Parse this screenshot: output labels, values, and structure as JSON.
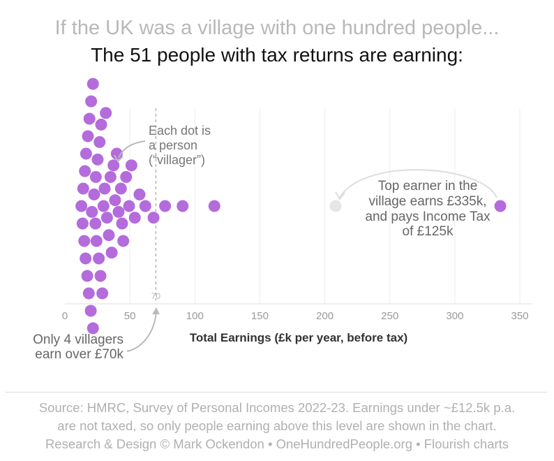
{
  "header": {
    "title": "If the UK was a village with one hundred people...",
    "subtitle": "The 51 people with tax returns are earning:"
  },
  "chart_data": {
    "type": "scatter",
    "subtype": "beeswarm",
    "xlabel": "Total Earnings (£k per year, before tax)",
    "ylabel": "",
    "xlim": [
      0,
      360
    ],
    "xticks": [
      0,
      50,
      100,
      150,
      200,
      250,
      300,
      350
    ],
    "grid": true,
    "dot_color": "#b46bdc",
    "reference_line": {
      "value": 70,
      "label": "70",
      "style": "dashed"
    },
    "values": [
      12.7,
      13.6,
      14.1,
      14.9,
      15.4,
      15.9,
      16.3,
      17.2,
      17.7,
      18.4,
      18.9,
      19.9,
      20.2,
      20.8,
      21.6,
      21.6,
      22.5,
      23.5,
      23.8,
      24.3,
      25.2,
      26.1,
      26.7,
      27.4,
      27.9,
      28.8,
      29.7,
      30.6,
      31.5,
      32.4,
      33.8,
      35.1,
      36.0,
      37.4,
      38.6,
      39.9,
      41.3,
      43.1,
      44.0,
      44.9,
      47.1,
      49.4,
      51.2,
      53.8,
      57.4,
      61.9,
      68.2,
      77.1,
      90.6,
      115.0,
      335
    ],
    "annotations": [
      {
        "lines": [
          "Each dot is",
          "a person",
          "(“villager”)"
        ]
      },
      {
        "lines": [
          "Top earner in the",
          "village earns £335k,",
          "and pays Income Tax",
          "of £125k"
        ]
      },
      {
        "lines": [
          "Only 4 villagers",
          "earn over £70k"
        ]
      }
    ]
  },
  "footer": {
    "lines": [
      "Source: HMRC, Survey of Personal Incomes 2022-23. Earnings under ~£12.5k p.a.",
      "are not taxed, so only people earning above this level are shown in the chart.",
      "Research & Design © Mark Ockendon • OneHundredPeople.org • Flourish charts"
    ]
  }
}
